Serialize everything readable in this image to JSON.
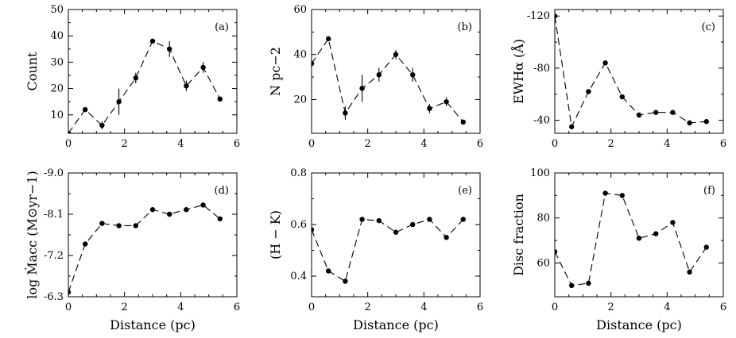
{
  "chart_data": [
    {
      "id": "a",
      "type": "line",
      "panel_label": "(a)",
      "xlabel": "",
      "ylabel": "Count",
      "xlim": [
        0,
        6
      ],
      "ylim": [
        3,
        50
      ],
      "xticks": [
        0,
        2,
        4,
        6
      ],
      "xtick_labels": [
        "0",
        "2",
        "4",
        "6"
      ],
      "yticks": [
        10,
        20,
        30,
        40,
        50
      ],
      "ytick_labels": [
        "10",
        "20",
        "30",
        "40",
        "50"
      ],
      "x": [
        0,
        0.6,
        1.2,
        1.8,
        2.4,
        3.0,
        3.6,
        4.2,
        4.8,
        5.4
      ],
      "y": [
        3,
        12,
        6,
        15,
        24,
        38,
        35,
        21,
        28,
        16
      ],
      "yerr": [
        0,
        0,
        1.5,
        5,
        2,
        0.5,
        3,
        2,
        2,
        0
      ]
    },
    {
      "id": "b",
      "type": "line",
      "panel_label": "(b)",
      "xlabel": "",
      "ylabel": "N pc−2",
      "xlim": [
        0,
        6
      ],
      "ylim": [
        5,
        60
      ],
      "xticks": [
        0,
        2,
        4,
        6
      ],
      "xtick_labels": [
        "0",
        "2",
        "4",
        "6"
      ],
      "yticks": [
        20,
        40,
        60
      ],
      "ytick_labels": [
        "20",
        "40",
        "60"
      ],
      "x": [
        0,
        0.6,
        1.2,
        1.8,
        2.4,
        3.0,
        3.6,
        4.2,
        4.8,
        5.4
      ],
      "y": [
        36,
        47,
        14,
        25,
        31,
        40,
        31,
        16,
        19,
        10
      ],
      "yerr": [
        2,
        1,
        3,
        6,
        3,
        2,
        3,
        2,
        2,
        1
      ]
    },
    {
      "id": "c",
      "type": "line",
      "panel_label": "(c)",
      "xlabel": "",
      "ylabel": "EWHα (Å)",
      "xlim": [
        0,
        6
      ],
      "ylim": [
        -125,
        -30
      ],
      "y_inverted": true,
      "xticks": [
        0,
        2,
        4,
        6
      ],
      "xtick_labels": [
        "0",
        "2",
        "4",
        "6"
      ],
      "yticks": [
        -120,
        -80,
        -40
      ],
      "ytick_labels": [
        "-120",
        "-80",
        "-40"
      ],
      "x": [
        0,
        0.6,
        1.2,
        1.8,
        2.4,
        3.0,
        3.6,
        4.2,
        4.8,
        5.4
      ],
      "y": [
        -120,
        -35,
        -62,
        -84,
        -58,
        -44,
        -46,
        -46,
        -38,
        -39
      ],
      "yerr": [
        0,
        0,
        0,
        0,
        0,
        0,
        0,
        0,
        0,
        0
      ]
    },
    {
      "id": "d",
      "type": "line",
      "panel_label": "(d)",
      "xlabel": "Distance (pc)",
      "ylabel": "log Ṁacc (M⊙yr−1)",
      "xlim": [
        0,
        6
      ],
      "ylim": [
        -9.0,
        -6.3
      ],
      "y_inverted": true,
      "xticks": [
        0,
        2,
        4,
        6
      ],
      "xtick_labels": [
        "0",
        "2",
        "4",
        "6"
      ],
      "yticks": [
        -9.0,
        -8.1,
        -7.2,
        -6.3
      ],
      "ytick_labels": [
        "-9.0",
        "-8.1",
        "-7.2",
        "-6.3"
      ],
      "x": [
        0,
        0.6,
        1.2,
        1.8,
        2.4,
        3.0,
        3.6,
        4.2,
        4.8,
        5.4
      ],
      "y": [
        -6.4,
        -7.45,
        -7.9,
        -7.85,
        -7.85,
        -8.2,
        -8.1,
        -8.2,
        -8.3,
        -8.0
      ],
      "yerr": [
        0,
        0,
        0,
        0,
        0,
        0,
        0,
        0,
        0,
        0
      ]
    },
    {
      "id": "e",
      "type": "line",
      "panel_label": "(e)",
      "xlabel": "Distance (pc)",
      "ylabel": "(H − K)",
      "xlim": [
        0,
        6
      ],
      "ylim": [
        0.32,
        0.8
      ],
      "xticks": [
        0,
        2,
        4,
        6
      ],
      "xtick_labels": [
        "0",
        "2",
        "4",
        "6"
      ],
      "yticks": [
        0.4,
        0.6,
        0.8
      ],
      "ytick_labels": [
        "0.4",
        "0.6",
        "0.8"
      ],
      "x": [
        0,
        0.6,
        1.2,
        1.8,
        2.4,
        3.0,
        3.6,
        4.2,
        4.8,
        5.4
      ],
      "y": [
        0.58,
        0.42,
        0.38,
        0.62,
        0.615,
        0.57,
        0.6,
        0.62,
        0.55,
        0.62
      ],
      "yerr": [
        0,
        0,
        0,
        0,
        0,
        0,
        0,
        0,
        0,
        0
      ]
    },
    {
      "id": "f",
      "type": "line",
      "panel_label": "(f)",
      "xlabel": "Distance (pc)",
      "ylabel": "Disc fraction",
      "xlim": [
        0,
        6
      ],
      "ylim": [
        45,
        100
      ],
      "xticks": [
        0,
        2,
        4,
        6
      ],
      "xtick_labels": [
        "0",
        "2",
        "4",
        "6"
      ],
      "yticks": [
        60,
        80,
        100
      ],
      "ytick_labels": [
        "60",
        "80",
        "100"
      ],
      "x": [
        0,
        0.6,
        1.2,
        1.8,
        2.4,
        3.0,
        3.6,
        4.2,
        4.8,
        5.4
      ],
      "y": [
        65,
        50,
        51,
        91,
        90,
        71,
        73,
        78,
        56,
        67
      ],
      "yerr": [
        0,
        0,
        0,
        0,
        0,
        0,
        0,
        0,
        0,
        0
      ]
    }
  ]
}
